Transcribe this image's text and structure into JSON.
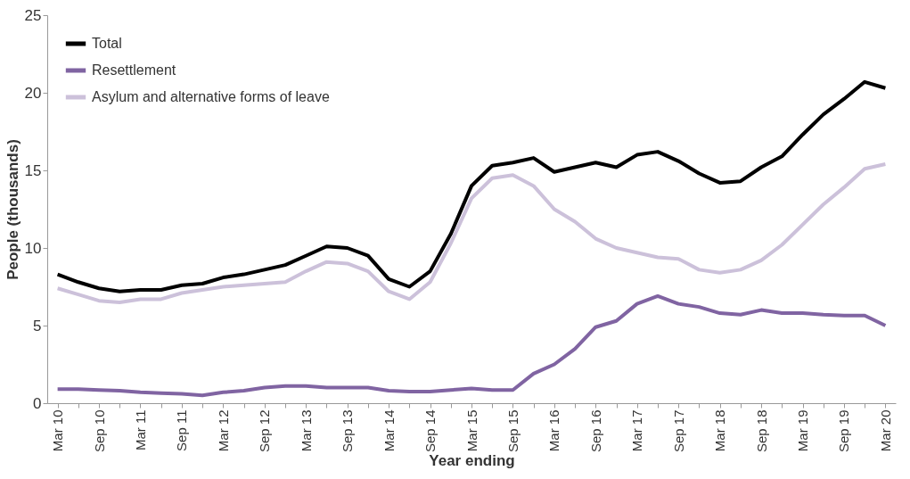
{
  "chart_data": {
    "type": "line",
    "xlabel": "Year ending",
    "ylabel": "People (thousands)",
    "categories": [
      "Mar 10",
      null,
      "Sep 10",
      null,
      "Mar 11",
      null,
      "Sep 11",
      null,
      "Mar 12",
      null,
      "Sep 12",
      null,
      "Mar 13",
      null,
      "Sep 13",
      null,
      "Mar 14",
      null,
      "Sep 14",
      null,
      "Mar 15",
      null,
      "Sep 15",
      null,
      "Mar 16",
      null,
      "Sep 16",
      null,
      "Mar 17",
      null,
      "Sep 17",
      null,
      "Mar 18",
      null,
      "Sep 18",
      null,
      "Mar 19",
      null,
      "Sep 19",
      null,
      "Mar 20"
    ],
    "series": [
      {
        "name": "Total",
        "color": "#000000",
        "values": [
          8.3,
          7.8,
          7.4,
          7.2,
          7.3,
          7.3,
          7.6,
          7.7,
          8.1,
          8.3,
          8.6,
          8.9,
          9.5,
          10.1,
          10.0,
          9.5,
          8.0,
          7.5,
          8.5,
          10.9,
          14.0,
          15.3,
          15.5,
          15.8,
          14.9,
          15.2,
          15.5,
          15.2,
          16.0,
          16.2,
          15.6,
          14.8,
          14.2,
          14.3,
          15.2,
          15.9,
          17.3,
          18.6,
          19.6,
          20.7,
          20.3
        ]
      },
      {
        "name": "Resettlement",
        "color": "#8064a2",
        "values": [
          0.9,
          0.9,
          0.85,
          0.8,
          0.7,
          0.65,
          0.6,
          0.5,
          0.7,
          0.8,
          1.0,
          1.1,
          1.1,
          1.0,
          1.0,
          1.0,
          0.8,
          0.75,
          0.75,
          0.85,
          0.95,
          0.85,
          0.85,
          1.9,
          2.5,
          3.5,
          4.9,
          5.3,
          6.4,
          6.9,
          6.4,
          6.2,
          5.8,
          5.7,
          6.0,
          5.8,
          5.8,
          5.7,
          5.65,
          5.65,
          5.0
        ]
      },
      {
        "name": "Asylum and alternative forms of leave",
        "color": "#ccc1da",
        "values": [
          7.4,
          7.0,
          6.6,
          6.5,
          6.7,
          6.7,
          7.1,
          7.3,
          7.5,
          7.6,
          7.7,
          7.8,
          8.5,
          9.1,
          9.0,
          8.5,
          7.2,
          6.7,
          7.8,
          10.3,
          13.2,
          14.5,
          14.7,
          14.0,
          12.5,
          11.7,
          10.6,
          10.0,
          9.7,
          9.4,
          9.3,
          8.6,
          8.4,
          8.6,
          9.2,
          10.2,
          11.5,
          12.8,
          13.9,
          15.1,
          15.4
        ]
      }
    ],
    "ylim": [
      0,
      25
    ],
    "yticks": [
      0,
      5,
      10,
      15,
      20,
      25
    ],
    "grid": false,
    "legend": "top left",
    "marker": "none",
    "line_style": "solid"
  }
}
